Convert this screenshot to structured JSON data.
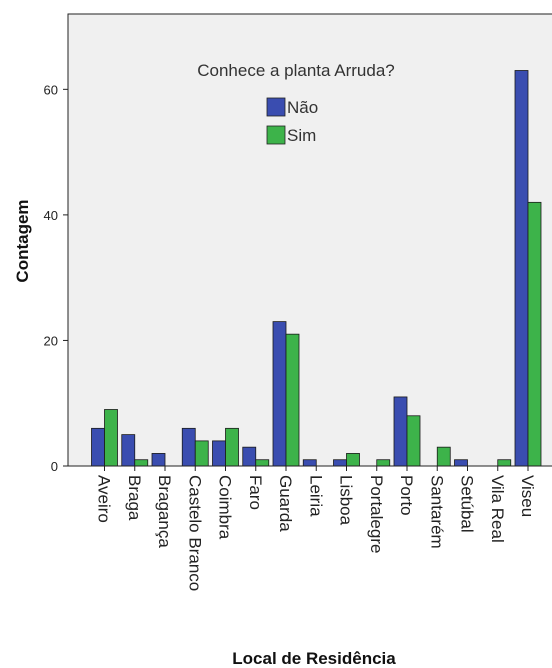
{
  "chart_data": {
    "type": "bar",
    "xlabel": "Local de Residência",
    "ylabel": "Contagem",
    "legend_title": "Conhece a planta Arruda?",
    "legend_position": "top-center",
    "ylim": [
      0,
      72
    ],
    "yticks": [
      0,
      20,
      40,
      60
    ],
    "grid": false,
    "background_color": "#f0f0f0",
    "categories": [
      "Aveiro",
      "Braga",
      "Bragança",
      "Castelo Branco",
      "Coimbra",
      "Faro",
      "Guarda",
      "Leiria",
      "Lisboa",
      "Portalegre",
      "Porto",
      "Santarém",
      "Setúbal",
      "Vila Real",
      "Viseu"
    ],
    "series": [
      {
        "name": "Não",
        "color": "#3a4db0",
        "values": [
          6,
          5,
          2,
          6,
          4,
          3,
          23,
          1,
          1,
          0,
          11,
          0,
          1,
          0,
          63
        ]
      },
      {
        "name": "Sim",
        "color": "#3db34a",
        "values": [
          9,
          1,
          0,
          4,
          6,
          1,
          21,
          0,
          2,
          1,
          8,
          3,
          0,
          1,
          42
        ]
      }
    ]
  }
}
